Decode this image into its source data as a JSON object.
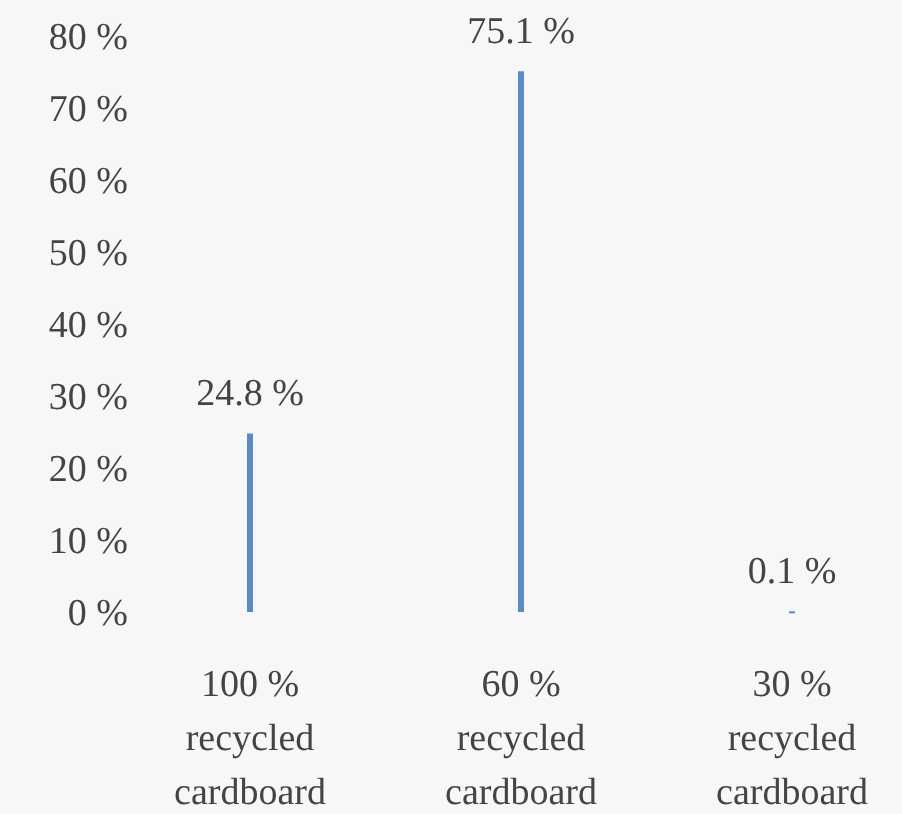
{
  "chart_data": {
    "type": "bar",
    "categories": [
      "100 % recycled cardboard",
      "60 % recycled cardboard",
      "30 % recycled cardboard"
    ],
    "values": [
      24.8,
      75.1,
      0.1
    ],
    "value_labels": [
      "24.8 %",
      "75.1 %",
      "0.1 %"
    ],
    "color": "#5b8bc4",
    "ylim": [
      0,
      80
    ],
    "yticks": [
      {
        "value": 0,
        "label": "0 %"
      },
      {
        "value": 10,
        "label": "10 %"
      },
      {
        "value": 20,
        "label": "20 %"
      },
      {
        "value": 30,
        "label": "30 %"
      },
      {
        "value": 40,
        "label": "40 %"
      },
      {
        "value": 50,
        "label": "50 %"
      },
      {
        "value": 60,
        "label": "60 %"
      },
      {
        "value": 70,
        "label": "70 %"
      },
      {
        "value": 80,
        "label": "80 %"
      }
    ],
    "grid": false
  }
}
